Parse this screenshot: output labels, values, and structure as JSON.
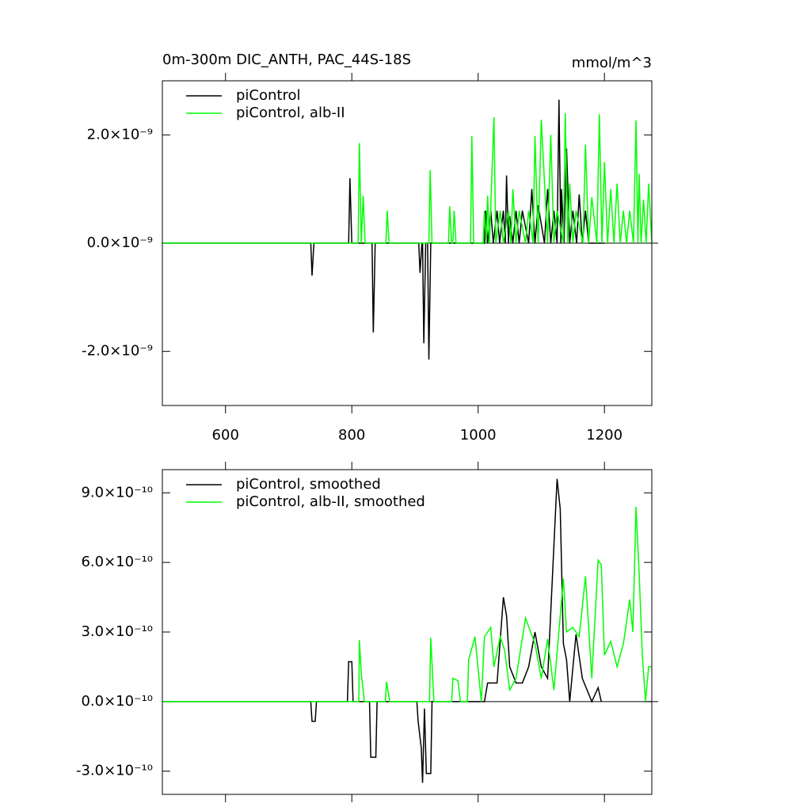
{
  "chart_data": [
    {
      "type": "line",
      "title": "0m-300m DIC_ANTH, PAC_44S-18S",
      "units": "mmol/m^3",
      "xlim": [
        500,
        1275
      ],
      "xticks": [
        600,
        800,
        1000,
        1200
      ],
      "xtick_labels": true,
      "ylim": [
        -3e-09,
        3e-09
      ],
      "yticks": [
        {
          "value": 2e-09,
          "label": "2.0×10⁻⁹"
        },
        {
          "value": 0,
          "label": "0.0×10⁻⁹"
        },
        {
          "value": -2e-09,
          "label": "-2.0×10⁻⁹"
        }
      ],
      "zero_line": true,
      "series": [
        {
          "name": "piControl",
          "color": "#000000",
          "x": [
            500,
            735,
            737,
            740,
            795,
            797,
            800,
            832,
            834,
            837,
            906,
            908,
            911,
            912,
            914,
            917,
            920,
            922,
            925,
            1010,
            1012,
            1015,
            1020,
            1024,
            1030,
            1034,
            1040,
            1043,
            1045,
            1048,
            1050,
            1055,
            1060,
            1065,
            1070,
            1080,
            1085,
            1090,
            1095,
            1105,
            1110,
            1115,
            1120,
            1125,
            1128,
            1131,
            1132,
            1136,
            1140,
            1145,
            1150,
            1156,
            1160,
            1165,
            1170,
            1175,
            1200
          ],
          "values": [
            0,
            0,
            -6e-10,
            0,
            0,
            1.2e-09,
            0,
            0,
            -1.65e-09,
            0,
            0,
            -5.5e-10,
            0,
            0,
            -1.85e-09,
            0,
            0,
            -2.15e-09,
            0,
            0,
            6e-10,
            0,
            6e-10,
            0,
            6e-10,
            0,
            6e-10,
            0,
            1.25e-09,
            0,
            5e-10,
            0,
            6e-10,
            0,
            6e-10,
            0,
            1e-09,
            0,
            7e-10,
            0,
            1e-09,
            0,
            6e-10,
            0,
            2.65e-09,
            0,
            1e-09,
            0,
            1.75e-09,
            0,
            6e-10,
            0,
            9e-10,
            0,
            6e-10,
            0,
            0
          ]
        },
        {
          "name": "piControl, alb-II",
          "color": "#00ff00",
          "x": [
            500,
            810,
            812,
            815,
            818,
            821,
            854,
            856,
            859,
            922,
            924,
            927,
            953,
            955,
            958,
            960,
            962,
            965,
            988,
            990,
            993,
            1008,
            1010,
            1013,
            1015,
            1018,
            1025,
            1028,
            1035,
            1040,
            1048,
            1052,
            1055,
            1060,
            1065,
            1075,
            1080,
            1087,
            1090,
            1095,
            1100,
            1110,
            1115,
            1120,
            1125,
            1135,
            1138,
            1142,
            1145,
            1150,
            1155,
            1166,
            1170,
            1175,
            1180,
            1188,
            1192,
            1196,
            1200,
            1205,
            1210,
            1215,
            1220,
            1225,
            1230,
            1235,
            1240,
            1246,
            1250,
            1253,
            1255,
            1258,
            1262,
            1266,
            1270,
            1275
          ],
          "values": [
            0,
            0,
            1.85e-09,
            0,
            8.8e-10,
            0,
            0,
            6e-10,
            0,
            0,
            1.35e-09,
            0,
            0,
            6.8e-10,
            0,
            0,
            6e-10,
            0,
            0,
            1.98e-09,
            0,
            0,
            6e-10,
            0,
            8.8e-10,
            0,
            2.33e-09,
            0,
            6e-10,
            0,
            6e-10,
            0,
            1e-09,
            0,
            6e-10,
            0,
            6e-10,
            0,
            1.98e-09,
            0,
            2.28e-09,
            0,
            2e-09,
            0,
            6e-10,
            0,
            2.4e-09,
            0,
            1.1e-09,
            0,
            6e-10,
            0,
            1.82e-09,
            0,
            8.5e-10,
            0,
            2.38e-09,
            0,
            1.5e-09,
            0,
            1e-09,
            0,
            1.1e-09,
            0,
            6e-10,
            0,
            6e-10,
            0,
            2.27e-09,
            0,
            1.28e-09,
            0,
            8e-10,
            0,
            1.1e-09,
            0
          ]
        }
      ]
    },
    {
      "type": "line",
      "xlim": [
        500,
        1275
      ],
      "xticks": [
        600,
        800,
        1000,
        1200
      ],
      "xtick_labels": false,
      "ylim": [
        -4e-10,
        1e-09
      ],
      "yticks": [
        {
          "value": 9e-10,
          "label": "9.0×10⁻¹⁰"
        },
        {
          "value": 6e-10,
          "label": "6.0×10⁻¹⁰"
        },
        {
          "value": 3e-10,
          "label": "3.0×10⁻¹⁰"
        },
        {
          "value": 0,
          "label": "0.0×10⁻¹⁰"
        },
        {
          "value": -3e-10,
          "label": "-3.0×10⁻¹⁰"
        }
      ],
      "zero_line": true,
      "series": [
        {
          "name": "piControl, smoothed",
          "color": "#000000",
          "x": [
            500,
            735,
            737,
            742,
            744,
            793,
            795,
            800,
            802,
            828,
            830,
            838,
            840,
            903,
            905,
            910,
            912,
            915,
            918,
            925,
            927,
            1010,
            1015,
            1030,
            1040,
            1045,
            1050,
            1060,
            1070,
            1080,
            1090,
            1100,
            1110,
            1125,
            1130,
            1135,
            1140,
            1145,
            1155,
            1165,
            1180,
            1190,
            1195
          ],
          "values": [
            0,
            0,
            -8.5e-11,
            -8.5e-11,
            0,
            0,
            1.72e-10,
            1.72e-10,
            0,
            0,
            -2.4e-10,
            -2.4e-10,
            0,
            0,
            -8.5e-11,
            -2e-10,
            -3.5e-10,
            -3e-11,
            -3.1e-10,
            -3.1e-10,
            0,
            0,
            8e-11,
            8e-11,
            4.5e-10,
            3.7e-10,
            1.5e-10,
            8e-11,
            8e-11,
            1.5e-10,
            3e-10,
            1.5e-10,
            1e-10,
            9.6e-10,
            8.3e-10,
            2.5e-10,
            1.8e-10,
            0,
            2.9e-10,
            1e-10,
            0,
            6e-11,
            0
          ]
        },
        {
          "name": "piControl, alb-II, smoothed",
          "color": "#00ff00",
          "x": [
            500,
            811,
            812,
            815,
            820,
            853,
            855,
            860,
            923,
            925,
            930,
            958,
            960,
            968,
            972,
            983,
            985,
            995,
            1005,
            1010,
            1020,
            1025,
            1035,
            1042,
            1050,
            1060,
            1075,
            1090,
            1100,
            1110,
            1120,
            1135,
            1140,
            1150,
            1160,
            1170,
            1180,
            1190,
            1195,
            1200,
            1210,
            1220,
            1230,
            1240,
            1245,
            1250,
            1255,
            1260,
            1265,
            1270,
            1275
          ],
          "values": [
            0,
            0,
            2.65e-10,
            1.2e-10,
            0,
            0,
            8.5e-11,
            0,
            0,
            2.75e-10,
            0,
            0,
            1e-10,
            9e-11,
            0,
            0,
            1.8e-10,
            2.8e-10,
            0,
            2.8e-10,
            3.2e-10,
            1.5e-10,
            2.8e-10,
            2.2e-10,
            5e-11,
            1e-10,
            3.6e-10,
            2.5e-10,
            1e-10,
            2.7e-10,
            5e-11,
            5.3e-10,
            3e-10,
            3.2e-10,
            2.8e-10,
            5.4e-10,
            1e-10,
            6.1e-10,
            5.9e-10,
            2e-10,
            2.6e-10,
            1.5e-10,
            2.5e-10,
            4.4e-10,
            3e-10,
            8.4e-10,
            5.5e-10,
            2e-10,
            0,
            1.5e-10,
            1.5e-10
          ]
        }
      ]
    }
  ]
}
